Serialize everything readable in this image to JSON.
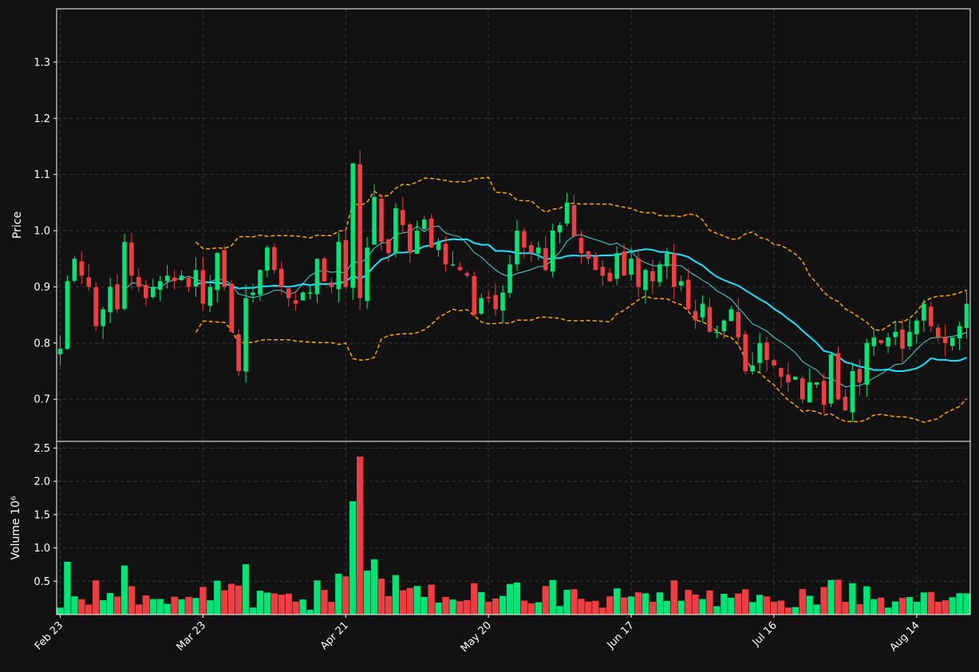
{
  "colors": {
    "background": "#121212",
    "up": "#00e676",
    "down": "#ef3e42",
    "ma_long": "#19e3ff",
    "ma_short": "#4fd6d0",
    "bands": "#ffa500",
    "frame": "#ffffff",
    "grid": "#3a3a3a"
  },
  "chart_data": {
    "type": "candlestick",
    "grid": true,
    "price_panel": {
      "ylabel": "Price",
      "ylim": [
        0.625,
        1.395
      ],
      "yticks": [
        0.7,
        0.8,
        0.9,
        1.0,
        1.1,
        1.2,
        1.3
      ],
      "ytick_labels": [
        "0.7",
        "0.8",
        "0.9",
        "1.0",
        "1.1",
        "1.2",
        "1.3"
      ]
    },
    "volume_panel": {
      "ylabel": "Volume",
      "ylabel_exponent": "10⁶",
      "ylim": [
        0,
        2.6
      ],
      "yticks": [
        0.5,
        1.0,
        1.5,
        2.0,
        2.5
      ],
      "ytick_labels": [
        "0.5",
        "1.0",
        "1.5",
        "2.0",
        "2.5"
      ]
    },
    "x_axis": {
      "n_bars": 128,
      "tick_index": [
        0,
        20,
        40,
        60,
        80,
        100,
        120
      ],
      "tick_labels": [
        "Feb 23",
        "Mar 23",
        "Apr 21",
        "May 20",
        "Jun 17",
        "Jul 16",
        "Aug 14"
      ]
    },
    "close": [
      0.79,
      0.91,
      0.95,
      0.92,
      0.9,
      0.83,
      0.86,
      0.9,
      0.86,
      0.98,
      0.92,
      0.9,
      0.88,
      0.9,
      0.91,
      0.92,
      0.91,
      0.92,
      0.9,
      0.93,
      0.87,
      0.9,
      0.96,
      0.9,
      0.82,
      0.75,
      0.88,
      0.89,
      0.93,
      0.97,
      0.93,
      0.9,
      0.88,
      0.87,
      0.89,
      0.89,
      0.95,
      0.91,
      0.9,
      0.98,
      0.9,
      1.12,
      0.88,
      0.97,
      1.06,
      0.98,
      0.96,
      1.04,
      1.01,
      0.96,
      1.0,
      1.02,
      0.97,
      0.98,
      0.94,
      0.94,
      0.93,
      0.92,
      0.85,
      0.88,
      0.88,
      0.86,
      0.89,
      0.94,
      1.0,
      0.97,
      0.96,
      0.97,
      0.93,
      1.0,
      1.01,
      1.05,
      0.99,
      0.96,
      0.95,
      0.93,
      0.92,
      0.91,
      0.96,
      0.92,
      0.95,
      0.9,
      0.93,
      0.91,
      0.94,
      0.96,
      0.9,
      0.91,
      0.86,
      0.84,
      0.87,
      0.82,
      0.82,
      0.84,
      0.86,
      0.81,
      0.75,
      0.76,
      0.8,
      0.77,
      0.76,
      0.74,
      0.73,
      0.74,
      0.7,
      0.73,
      0.73,
      0.69,
      0.78,
      0.7,
      0.68,
      0.75,
      0.73,
      0.8,
      0.81,
      0.8,
      0.81,
      0.82,
      0.79,
      0.82,
      0.84,
      0.87,
      0.83,
      0.81,
      0.8,
      0.81,
      0.83,
      0.87
    ],
    "moving_averages": [
      {
        "window": 10,
        "values": [
          null,
          null,
          null,
          null,
          null,
          null,
          null,
          null,
          null,
          0.894,
          0.907,
          0.906,
          0.9,
          0.898,
          0.899,
          0.908,
          0.913,
          0.915,
          0.919,
          0.914,
          0.909,
          0.909,
          0.914,
          0.913,
          0.904,
          0.887,
          0.884,
          0.881,
          0.884,
          0.888,
          0.894,
          0.894,
          0.886,
          0.891,
          0.906,
          0.92,
          0.927,
          0.929,
          0.926,
          0.927,
          0.924,
          0.946,
          0.942,
          0.952,
          0.969,
          0.978,
          0.979,
          0.993,
          0.996,
          0.998,
          1.008,
          0.998,
          1.007,
          1.008,
          0.996,
          0.992,
          0.989,
          0.977,
          0.961,
          0.953,
          0.941,
          0.93,
          0.922,
          0.918,
          0.924,
          0.927,
          0.931,
          0.936,
          0.937,
          0.949,
          0.962,
          0.981,
          0.991,
          0.993,
          0.988,
          0.984,
          0.98,
          0.975,
          0.978,
          0.97,
          0.964,
          0.949,
          0.943,
          0.938,
          0.937,
          0.94,
          0.938,
          0.938,
          0.928,
          0.92,
          0.912,
          0.904,
          0.893,
          0.886,
          0.878,
          0.863,
          0.849,
          0.834,
          0.828,
          0.821,
          0.81,
          0.802,
          0.793,
          0.783,
          0.767,
          0.759,
          0.752,
          0.739,
          0.737,
          0.73,
          0.722,
          0.724,
          0.724,
          0.73,
          0.738,
          0.745,
          0.753,
          0.762,
          0.763,
          0.775,
          0.789,
          0.801,
          0.809,
          0.81,
          0.81,
          0.812,
          0.814,
          0.819
        ]
      },
      {
        "window": 20,
        "values": [
          null,
          null,
          null,
          null,
          null,
          null,
          null,
          null,
          null,
          null,
          null,
          null,
          null,
          null,
          null,
          null,
          null,
          null,
          null,
          0.904,
          0.908,
          0.908,
          0.907,
          0.906,
          0.902,
          0.897,
          0.898,
          0.898,
          0.901,
          0.901,
          0.902,
          0.901,
          0.9,
          0.902,
          0.905,
          0.903,
          0.905,
          0.905,
          0.905,
          0.907,
          0.909,
          0.92,
          0.914,
          0.922,
          0.937,
          0.949,
          0.953,
          0.961,
          0.961,
          0.962,
          0.966,
          0.972,
          0.974,
          0.98,
          0.983,
          0.985,
          0.984,
          0.985,
          0.978,
          0.975,
          0.975,
          0.964,
          0.964,
          0.963,
          0.96,
          0.96,
          0.96,
          0.956,
          0.949,
          0.951,
          0.951,
          0.955,
          0.956,
          0.955,
          0.956,
          0.955,
          0.956,
          0.956,
          0.957,
          0.96,
          0.963,
          0.965,
          0.967,
          0.966,
          0.962,
          0.962,
          0.959,
          0.957,
          0.953,
          0.945,
          0.938,
          0.927,
          0.918,
          0.912,
          0.907,
          0.902,
          0.894,
          0.886,
          0.878,
          0.871,
          0.861,
          0.853,
          0.843,
          0.834,
          0.822,
          0.811,
          0.8,
          0.786,
          0.783,
          0.776,
          0.766,
          0.763,
          0.758,
          0.756,
          0.752,
          0.752,
          0.753,
          0.75,
          0.75,
          0.752,
          0.755,
          0.762,
          0.773,
          0.77,
          0.77,
          0.768,
          0.769,
          0.774
        ]
      }
    ],
    "bollinger_bands": {
      "window": 20,
      "num_std": 2
    },
    "volume_summary": {
      "peak_value": 2.37,
      "peak_index": 42,
      "second_peak": 1.7
    }
  }
}
